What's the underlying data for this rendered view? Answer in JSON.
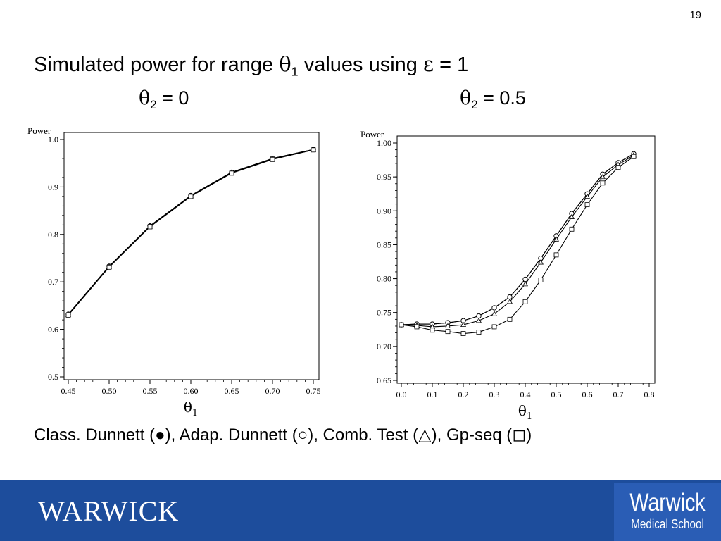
{
  "page_number": "19",
  "title": {
    "prefix": "Simulated power for range ",
    "theta": "θ",
    "sub": "1",
    "suffix": " values using ",
    "epsilon": "ε",
    "eq": " = 1"
  },
  "subtitles": [
    {
      "theta": "θ",
      "sub": "2",
      "rest": " = 0"
    },
    {
      "theta": "θ",
      "sub": "2",
      "rest": " = 0.5"
    }
  ],
  "legend": {
    "items": [
      {
        "label": "Class. Dunnett (",
        "symbol": "●",
        "close": "), "
      },
      {
        "label": "Adap. Dunnett (",
        "symbol": "○",
        "close": "), "
      },
      {
        "label": "Comb. Test (",
        "symbol": "△",
        "close": "), "
      },
      {
        "label": "Gp-seq (",
        "symbol": "◻",
        "close": ")"
      }
    ]
  },
  "footer": {
    "logo": "WARWICK",
    "badge_line1": "Warwick",
    "badge_line2": "Medical School",
    "bg": "#1d4d9c",
    "badge_bg": "#2a5db5"
  },
  "chart_data": [
    {
      "type": "line",
      "ylabel": "Power",
      "xlabel": "θ1",
      "xlim": [
        0.45,
        0.75
      ],
      "ylim": [
        0.5,
        1.0
      ],
      "xticks": [
        "0.45",
        "0.50",
        "0.55",
        "0.60",
        "0.65",
        "0.70",
        "0.75"
      ],
      "yticks": [
        "0.5",
        "0.6",
        "0.7",
        "0.8",
        "0.9",
        "1.0"
      ],
      "x": [
        0.45,
        0.5,
        0.55,
        0.6,
        0.65,
        0.7,
        0.75
      ],
      "series": [
        {
          "marker": "filled-circle",
          "values": [
            0.632,
            0.733,
            0.818,
            0.882,
            0.931,
            0.96,
            0.979
          ]
        },
        {
          "marker": "open-circle",
          "values": [
            0.632,
            0.733,
            0.818,
            0.882,
            0.931,
            0.96,
            0.979
          ]
        },
        {
          "marker": "triangle",
          "values": [
            0.631,
            0.732,
            0.817,
            0.881,
            0.93,
            0.959,
            0.978
          ]
        },
        {
          "marker": "square",
          "values": [
            0.63,
            0.731,
            0.816,
            0.88,
            0.929,
            0.958,
            0.978
          ]
        }
      ]
    },
    {
      "type": "line",
      "ylabel": "Power",
      "xlabel": "θ1",
      "xlim": [
        0.0,
        0.8
      ],
      "ylim": [
        0.65,
        1.0
      ],
      "xticks": [
        "0.0",
        "0.1",
        "0.2",
        "0.3",
        "0.4",
        "0.5",
        "0.6",
        "0.7",
        "0.8"
      ],
      "yticks": [
        "0.65",
        "0.70",
        "0.75",
        "0.80",
        "0.85",
        "0.90",
        "0.95",
        "1.00"
      ],
      "x": [
        0.0,
        0.05,
        0.1,
        0.15,
        0.2,
        0.25,
        0.3,
        0.35,
        0.4,
        0.45,
        0.5,
        0.55,
        0.6,
        0.65,
        0.7,
        0.75
      ],
      "series": [
        {
          "marker": "filled-circle",
          "values": [
            0.732,
            0.733,
            0.733,
            0.735,
            0.738,
            0.745,
            0.757,
            0.773,
            0.799,
            0.83,
            0.863,
            0.896,
            0.925,
            0.954,
            0.971,
            0.984
          ]
        },
        {
          "marker": "open-circle",
          "values": [
            0.732,
            0.733,
            0.733,
            0.735,
            0.738,
            0.745,
            0.757,
            0.773,
            0.799,
            0.83,
            0.863,
            0.896,
            0.925,
            0.954,
            0.971,
            0.984
          ]
        },
        {
          "marker": "triangle",
          "values": [
            0.732,
            0.731,
            0.729,
            0.73,
            0.732,
            0.738,
            0.748,
            0.766,
            0.792,
            0.824,
            0.858,
            0.891,
            0.921,
            0.95,
            0.968,
            0.982
          ]
        },
        {
          "marker": "square",
          "values": [
            0.732,
            0.729,
            0.724,
            0.722,
            0.719,
            0.721,
            0.729,
            0.74,
            0.766,
            0.798,
            0.835,
            0.873,
            0.909,
            0.941,
            0.964,
            0.98
          ]
        }
      ]
    }
  ]
}
